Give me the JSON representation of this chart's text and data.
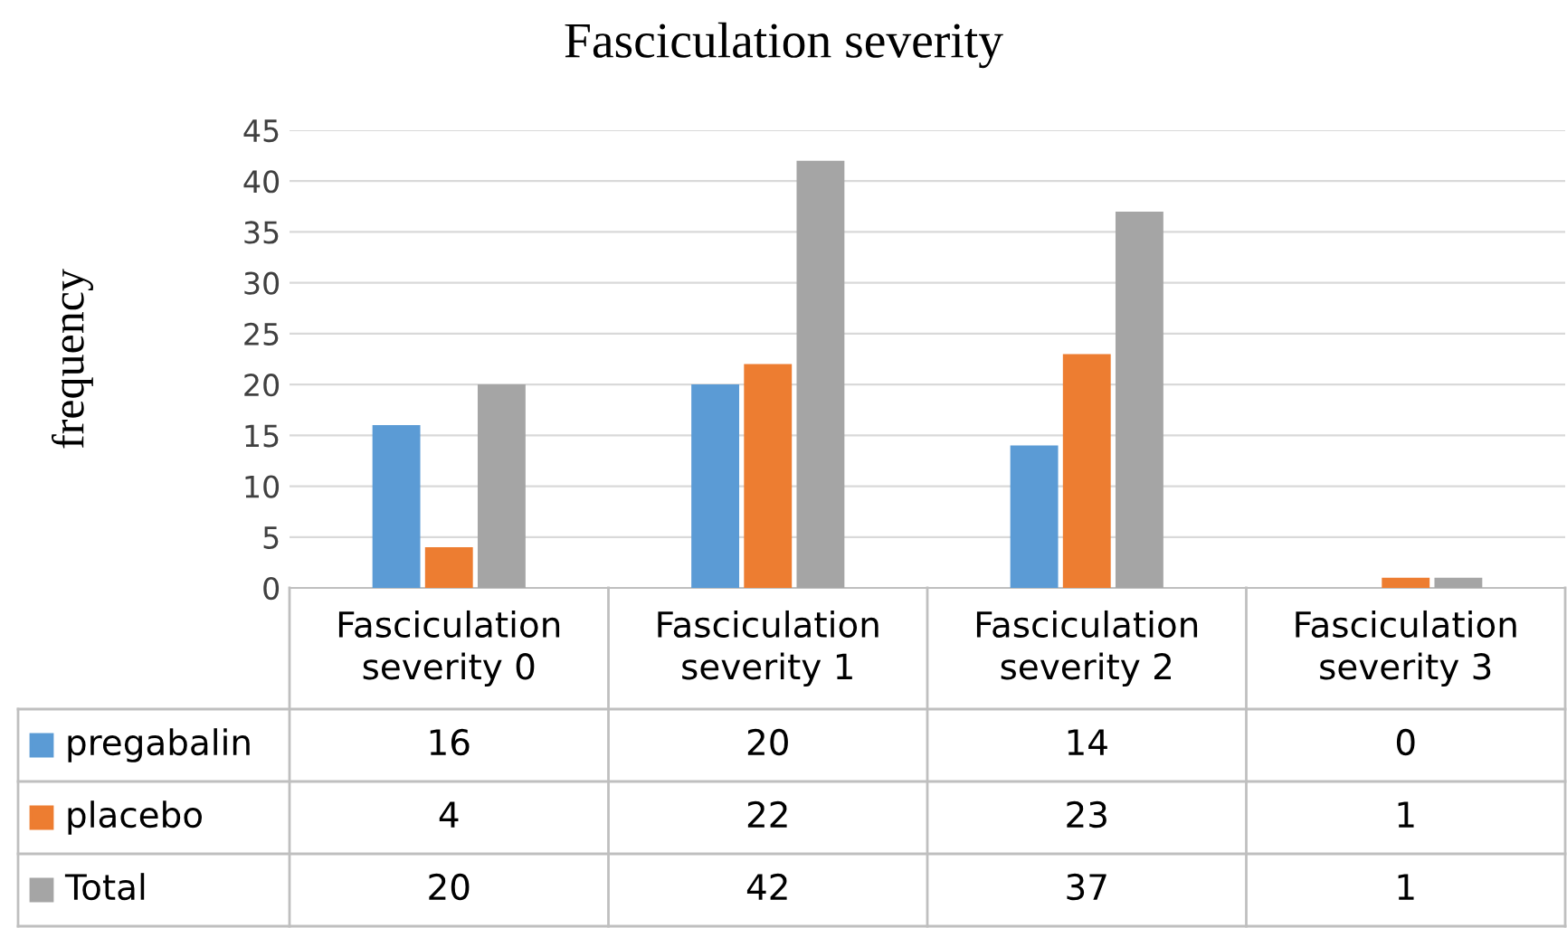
{
  "chart_data": {
    "type": "bar",
    "title": "Fasciculation severity",
    "ylabel": "frequency",
    "categories": [
      "Fasciculation severity 0",
      "Fasciculation severity 1",
      "Fasciculation severity 2",
      "Fasciculation severity 3"
    ],
    "series": [
      {
        "name": "pregabalin",
        "color": "#5b9bd5",
        "values": [
          16,
          20,
          14,
          0
        ]
      },
      {
        "name": "placebo",
        "color": "#ed7d31",
        "values": [
          4,
          22,
          23,
          1
        ]
      },
      {
        "name": "Total",
        "color": "#a5a5a5",
        "values": [
          20,
          42,
          37,
          1
        ]
      }
    ],
    "ylim": [
      0,
      45
    ],
    "yticks": [
      0,
      5,
      10,
      15,
      20,
      25,
      30,
      35,
      40,
      45
    ],
    "grid": "y",
    "legend": "bottom",
    "data_labels": true
  }
}
